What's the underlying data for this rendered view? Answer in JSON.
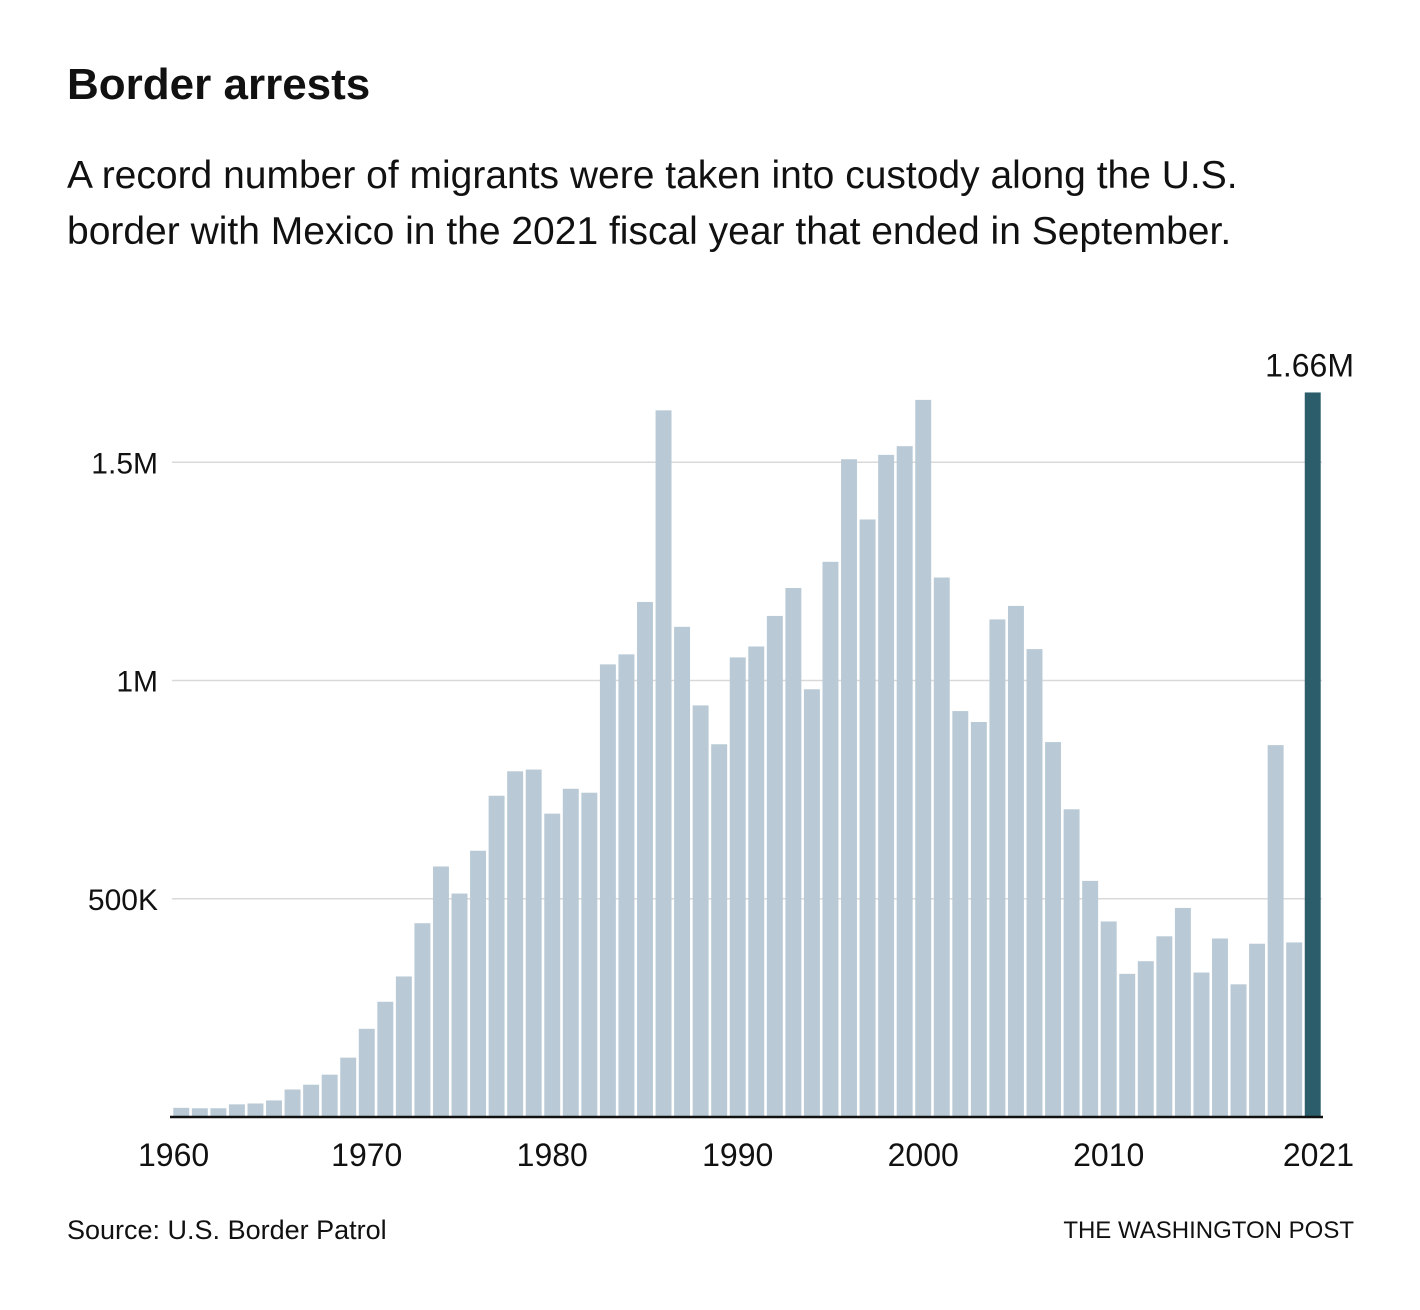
{
  "title": "Border arrests",
  "subtitle": "A record number of migrants were taken into custody along the U.S. border with Mexico in the 2021 fiscal year that ended in September.",
  "source": "Source: U.S. Border Patrol",
  "credit": "THE WASHINGTON POST",
  "colors": {
    "bar": "#b9cad6",
    "highlight": "#2b5d6b",
    "grid": "#d9d9d9",
    "axis": "#111111",
    "text": "#111111"
  },
  "chart_data": {
    "type": "bar",
    "title": "Border arrests",
    "xlabel": "",
    "ylabel": "",
    "ylim": [
      0,
      1700000
    ],
    "yticks": [
      {
        "value": 500000,
        "label": "500K"
      },
      {
        "value": 1000000,
        "label": "1M"
      },
      {
        "value": 1500000,
        "label": "1.5M"
      }
    ],
    "xtick_labels": [
      "1960",
      "1970",
      "1980",
      "1990",
      "2000",
      "2010",
      "2021"
    ],
    "highlight_label": "1.66M",
    "highlight_year": 2021,
    "categories": [
      1960,
      1961,
      1962,
      1963,
      1964,
      1965,
      1966,
      1967,
      1968,
      1969,
      1970,
      1971,
      1972,
      1973,
      1974,
      1975,
      1976,
      1977,
      1978,
      1979,
      1980,
      1981,
      1982,
      1983,
      1984,
      1985,
      1986,
      1987,
      1988,
      1989,
      1990,
      1991,
      1992,
      1993,
      1994,
      1995,
      1996,
      1997,
      1998,
      1999,
      2000,
      2001,
      2002,
      2003,
      2004,
      2005,
      2006,
      2007,
      2008,
      2009,
      2010,
      2011,
      2012,
      2013,
      2014,
      2015,
      2016,
      2017,
      2018,
      2019,
      2020,
      2021
    ],
    "values": [
      21000,
      20000,
      20000,
      29000,
      31000,
      38000,
      63000,
      74000,
      97000,
      136000,
      202000,
      264000,
      322000,
      444000,
      574000,
      512000,
      610000,
      736000,
      792000,
      796000,
      695000,
      752000,
      743000,
      1037000,
      1060000,
      1180000,
      1619000,
      1123000,
      943000,
      854000,
      1053000,
      1078000,
      1148000,
      1212000,
      980000,
      1272000,
      1507000,
      1369000,
      1517000,
      1537000,
      1643000,
      1236000,
      930000,
      905000,
      1140000,
      1171000,
      1072000,
      859000,
      705000,
      541000,
      448000,
      328000,
      357000,
      414000,
      479000,
      331000,
      409000,
      304000,
      397000,
      852000,
      400000,
      1660000
    ]
  }
}
